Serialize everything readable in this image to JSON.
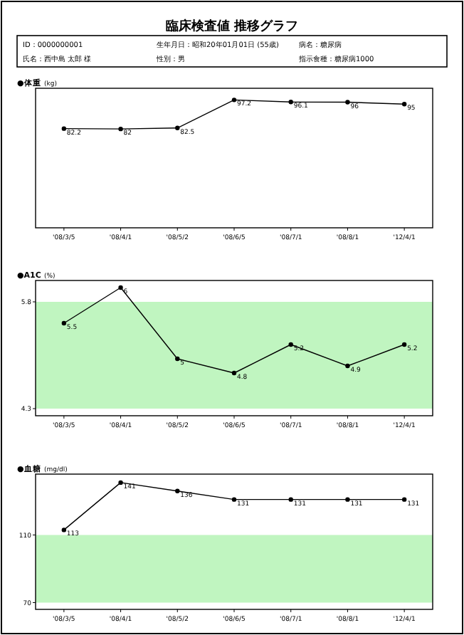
{
  "chart_data": [
    {
      "type": "other",
      "title": "臨床検査値 推移グラフ",
      "annotations": [
        "ID：0000000001",
        "生年月日：昭和20年01月01日 (55歳)",
        "病名：糖尿病",
        "氏名：西中島 太郎 様",
        "性別：男",
        "指示食種：糖尿病1000"
      ]
    },
    {
      "type": "line",
      "title": "●体重",
      "ylabel": "(kg)",
      "categories": [
        "'08/3/5",
        "'08/4/1",
        "'08/5/2",
        "'08/6/5",
        "'08/7/1",
        "'08/8/1",
        "'12/4/1"
      ],
      "values": [
        82.2,
        82,
        82.5,
        97.2,
        96.1,
        96,
        95
      ],
      "color": "#000000",
      "marker": "circle",
      "data_labels": true
    },
    {
      "type": "line",
      "title": "●A1C",
      "ylabel": "(%)",
      "categories": [
        "'08/3/5",
        "'08/4/1",
        "'08/5/2",
        "'08/6/5",
        "'08/7/1",
        "'08/8/1",
        "'12/4/1"
      ],
      "values": [
        5.5,
        6,
        5,
        4.8,
        5.2,
        4.9,
        5.2
      ],
      "color": "#000000",
      "marker": "circle",
      "data_labels": true,
      "ylim": [
        4.2,
        6.1
      ],
      "yticks": [
        4.3,
        5.8
      ],
      "bands": [
        {
          "axis": "y",
          "from": 4.3,
          "to": 5.8,
          "color": "#c0f5c0"
        }
      ]
    },
    {
      "type": "line",
      "title": "●血糖",
      "ylabel": "(mg/dl)",
      "categories": [
        "'08/3/5",
        "'08/4/1",
        "'08/5/2",
        "'08/6/5",
        "'08/7/1",
        "'08/8/1",
        "'12/4/1"
      ],
      "values": [
        113,
        141,
        136,
        131,
        131,
        131,
        131
      ],
      "color": "#000000",
      "marker": "circle",
      "data_labels": true,
      "ylim": [
        66,
        146
      ],
      "yticks": [
        70,
        110
      ],
      "bands": [
        {
          "axis": "y",
          "from": 70,
          "to": 110,
          "color": "#c0f5c0"
        }
      ]
    }
  ]
}
